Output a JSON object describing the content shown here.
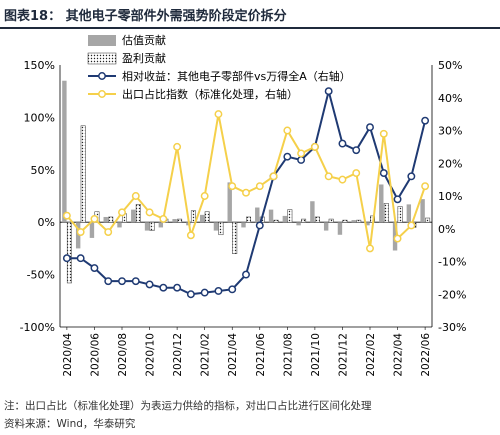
{
  "title": "图表18：    其他电子零部件外需强势阶段定价拆分",
  "footnote": "注：出口占比（标准化处理）为表运力供给的指标，对出口占比进行区间化处理",
  "source": "资料来源：Wind，华泰研究",
  "chart_data": {
    "type": "bar+line",
    "categories": [
      "2020/04",
      "2020/05",
      "2020/06",
      "2020/07",
      "2020/08",
      "2020/09",
      "2020/10",
      "2020/11",
      "2020/12",
      "2021/01",
      "2021/02",
      "2021/03",
      "2021/04",
      "2021/05",
      "2021/06",
      "2021/07",
      "2021/08",
      "2021/09",
      "2021/10",
      "2021/11",
      "2021/12",
      "2022/01",
      "2022/02",
      "2022/03",
      "2022/04",
      "2022/05",
      "2022/06"
    ],
    "tick_labels": [
      "2020/04",
      "2020/06",
      "2020/08",
      "2020/10",
      "2020/12",
      "2021/02",
      "2021/04",
      "2021/06",
      "2021/08",
      "2021/10",
      "2021/12",
      "2022/02",
      "2022/04",
      "2022/06"
    ],
    "left_axis": {
      "ylim": [
        -100,
        150
      ],
      "ticks": [
        "-100%",
        "-50%",
        "0%",
        "50%",
        "100%",
        "150%"
      ]
    },
    "right_axis": {
      "ylim": [
        -30,
        50
      ],
      "ticks": [
        "-30%",
        "-20%",
        "-10%",
        "0%",
        "10%",
        "20%",
        "30%",
        "40%",
        "50%"
      ]
    },
    "legend": [
      "估值贡献",
      "盈利贡献",
      "相对收益：其他电子零部件vs万得全A（右轴）",
      "出口占比指数（标准化处理，右轴）"
    ],
    "legend_position": "top-center",
    "series": [
      {
        "name": "估值贡献",
        "kind": "bar",
        "axis": "left",
        "color": "#a6a6a6",
        "values": [
          135,
          -25,
          -15,
          5,
          -5,
          12,
          -8,
          -5,
          3,
          -3,
          7,
          -8,
          38,
          -5,
          14,
          12,
          6,
          -3,
          20,
          -8,
          -12,
          2,
          -3,
          36,
          -27,
          17,
          22
        ]
      },
      {
        "name": "盈利贡献",
        "kind": "bar",
        "axis": "left",
        "color": "#ffffff",
        "pattern": "dots",
        "values": [
          -58,
          92,
          10,
          5,
          8,
          17,
          -8,
          3,
          3,
          11,
          10,
          -12,
          -30,
          5,
          5,
          2,
          12,
          3,
          5,
          3,
          2,
          2,
          6,
          18,
          15,
          -5,
          4
        ]
      },
      {
        "name": "相对收益：其他电子零部件vs万得全A（右轴）",
        "kind": "line",
        "axis": "right",
        "color": "#1f3a73",
        "values": [
          -9,
          -9,
          -12,
          -16,
          -16,
          -16,
          -17,
          -18,
          -18,
          -20,
          -19.5,
          -19,
          -18.5,
          -14,
          1,
          16,
          22,
          21,
          25,
          42,
          26,
          24,
          31,
          17,
          9,
          16,
          33
        ]
      },
      {
        "name": "出口占比指数（标准化处理，右轴）",
        "kind": "line",
        "axis": "right",
        "color": "#f5d04a",
        "values": [
          4,
          -1,
          3,
          -1,
          5,
          10,
          5,
          3,
          25,
          -2,
          10,
          35,
          13,
          11,
          13,
          16,
          30,
          23,
          25,
          16,
          15,
          17,
          -6,
          29,
          -3,
          1,
          13
        ]
      }
    ]
  }
}
